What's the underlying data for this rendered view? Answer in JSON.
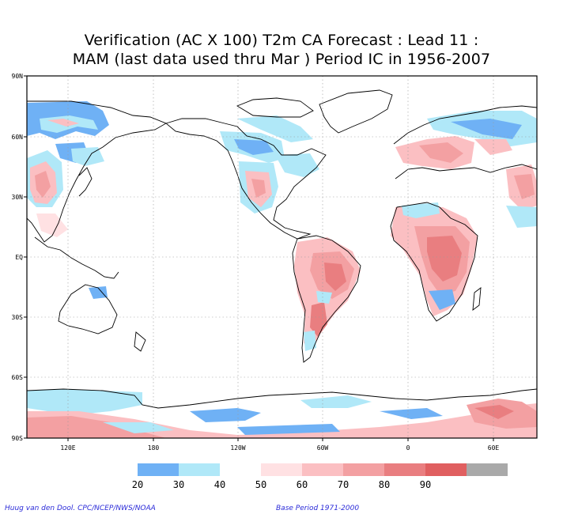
{
  "title": {
    "line1": "Verification (AC X 100) T2m CA Forecast : Lead 11 :",
    "line2": "MAM (last data used thru Mar ) Period IC in 1956-2007"
  },
  "map": {
    "lat_labels": [
      "90N",
      "60N",
      "30N",
      "EQ",
      "30S",
      "60S",
      "90S"
    ],
    "lon_labels": [
      "120E",
      "180",
      "120W",
      "60W",
      "0",
      "60E"
    ]
  },
  "legend": {
    "breaks": [
      "20",
      "30",
      "40",
      "50",
      "60",
      "70",
      "80",
      "90"
    ],
    "colors": [
      "#6fb1f5",
      "#b0e8f8",
      "#ffffff",
      "#ffe1e3",
      "#fbbfc2",
      "#f3a0a2",
      "#e97e80",
      "#e05f60",
      "#a9a9a9"
    ]
  },
  "footer": {
    "credit": "Huug van den Dool. CPC/NCEP/NWS/NOAA",
    "base_period": "Base Period 1971-2000"
  }
}
